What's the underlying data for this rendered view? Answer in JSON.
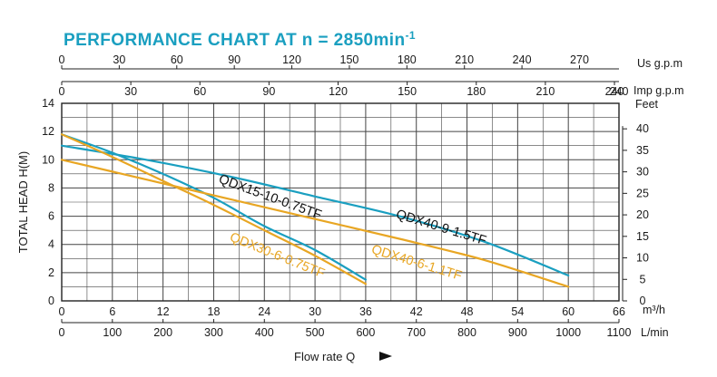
{
  "chart_data": {
    "type": "line",
    "title": "PERFORMANCE CHART AT n = 2850min",
    "title_superscript": "-1",
    "ylabel": "TOTAL HEAD H(M)",
    "xlabel": "Flow rate Q",
    "ylim": [
      0,
      14
    ],
    "xlim_m3h": [
      0,
      66
    ],
    "y_ticks": [
      "0",
      "2",
      "4",
      "6",
      "8",
      "10",
      "12",
      "14"
    ],
    "x_axes": {
      "m3h": {
        "unit": "m³/h",
        "ticks": [
          "0",
          "6",
          "12",
          "18",
          "24",
          "30",
          "36",
          "42",
          "48",
          "54",
          "60",
          "66"
        ]
      },
      "lmin": {
        "unit": "L/min",
        "ticks": [
          "0",
          "100",
          "200",
          "300",
          "400",
          "500",
          "600",
          "700",
          "800",
          "900",
          "1000",
          "1100"
        ]
      },
      "imp_gpm": {
        "unit": "Imp g.p.m",
        "ticks": [
          "0",
          "30",
          "60",
          "90",
          "120",
          "150",
          "180",
          "210",
          "240"
        ]
      },
      "us_gpm": {
        "unit": "Us g.p.m",
        "ticks": [
          "0",
          "30",
          "60",
          "90",
          "120",
          "150",
          "180",
          "210",
          "240",
          "270"
        ]
      }
    },
    "right_axis": {
      "unit": "Feet",
      "ticks": [
        "0",
        "5",
        "10",
        "15",
        "20",
        "25",
        "30",
        "35",
        "40"
      ]
    },
    "series": [
      {
        "name": "QDX15-10-0.75TF",
        "color": "#1a9fc0",
        "x": [
          0,
          6,
          12,
          18,
          24,
          30,
          36
        ],
        "y": [
          11.8,
          10.5,
          9.0,
          7.3,
          5.3,
          3.6,
          1.5
        ]
      },
      {
        "name": "QDX40-9-1.5TF",
        "color": "#1a9fc0",
        "x": [
          0,
          10,
          20,
          30,
          40,
          50,
          60
        ],
        "y": [
          11.0,
          10.0,
          8.8,
          7.4,
          6.0,
          4.2,
          1.8
        ]
      },
      {
        "name": "QDX30-6-0.75TF",
        "color": "#e8a623",
        "x": [
          0,
          6,
          12,
          18,
          24,
          30,
          36
        ],
        "y": [
          11.8,
          10.2,
          8.5,
          6.8,
          5.0,
          3.2,
          1.2
        ]
      },
      {
        "name": "QDX40-6-1.1TF",
        "color": "#e8a623",
        "x": [
          0,
          10,
          20,
          30,
          40,
          50,
          60
        ],
        "y": [
          10.0,
          8.6,
          7.2,
          5.8,
          4.4,
          2.9,
          1.0
        ]
      }
    ],
    "grid": true,
    "legend": "labels on curves"
  },
  "colors": {
    "title": "#1a9fc0",
    "grid": "#444444",
    "teal": "#1a9fc0",
    "orange": "#e8a623"
  }
}
